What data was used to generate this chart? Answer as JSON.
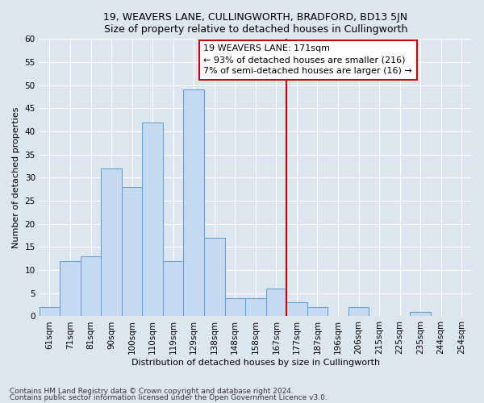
{
  "title1": "19, WEAVERS LANE, CULLINGWORTH, BRADFORD, BD13 5JN",
  "title2": "Size of property relative to detached houses in Cullingworth",
  "xlabel": "Distribution of detached houses by size in Cullingworth",
  "ylabel": "Number of detached properties",
  "footnote1": "Contains HM Land Registry data © Crown copyright and database right 2024.",
  "footnote2": "Contains public sector information licensed under the Open Government Licence v3.0.",
  "categories": [
    "61sqm",
    "71sqm",
    "81sqm",
    "90sqm",
    "100sqm",
    "110sqm",
    "119sqm",
    "129sqm",
    "138sqm",
    "148sqm",
    "158sqm",
    "167sqm",
    "177sqm",
    "187sqm",
    "196sqm",
    "206sqm",
    "215sqm",
    "225sqm",
    "235sqm",
    "244sqm",
    "254sqm"
  ],
  "values": [
    2,
    12,
    13,
    32,
    28,
    42,
    12,
    49,
    17,
    4,
    4,
    6,
    3,
    2,
    0,
    2,
    0,
    0,
    1,
    0,
    0
  ],
  "bar_color": "#c5d9f0",
  "bar_edge_color": "#5b9bd5",
  "vline_index": 11.5,
  "vline_color": "#cc0000",
  "annotation_text": "19 WEAVERS LANE: 171sqm\n← 93% of detached houses are smaller (216)\n7% of semi-detached houses are larger (16) →",
  "ylim": [
    0,
    60
  ],
  "yticks": [
    0,
    5,
    10,
    15,
    20,
    25,
    30,
    35,
    40,
    45,
    50,
    55,
    60
  ],
  "background_color": "#dce6f1",
  "plot_background": "#dce6f1",
  "grid_color": "#ffffff",
  "title_fontsize": 9,
  "axis_label_fontsize": 8,
  "tick_fontsize": 7.5,
  "footnote_fontsize": 6.5
}
